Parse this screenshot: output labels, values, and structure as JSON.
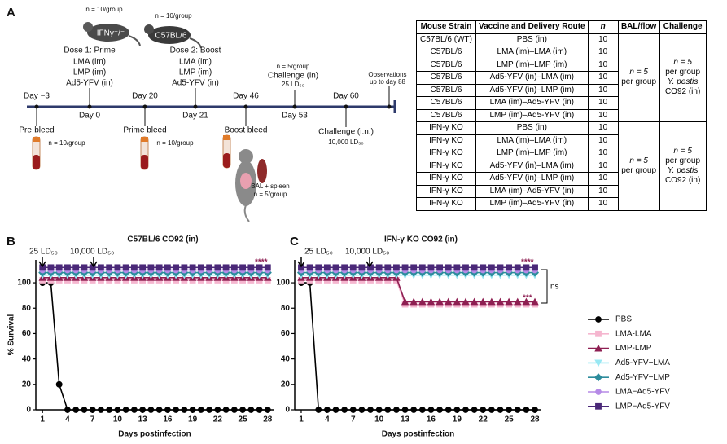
{
  "panel_a": {
    "label": "A",
    "mice": [
      {
        "n": "n = 10/group",
        "strain": "IFNγ⁻/⁻"
      },
      {
        "n": "n = 10/group",
        "strain": "C57BL/6"
      }
    ],
    "days": [
      "Day −3",
      "Day 0",
      "Day 20",
      "Day 21",
      "Day 46",
      "Day 53",
      "Day 60"
    ],
    "prime": [
      "Dose 1: Prime",
      "LMA (im)",
      "LMP (im)",
      "Ad5-YFV (in)"
    ],
    "boost": [
      "Dose 2: Boost",
      "LMA (im)",
      "LMP (im)",
      "Ad5-YFV (in)"
    ],
    "challenge_in": [
      "n = 5/group",
      "Challenge (in)",
      "25 LD₅₀"
    ],
    "observations": [
      "Observations",
      "up to day 88"
    ],
    "pre_bleed": [
      "Pre-bleed",
      "n = 10/group"
    ],
    "prime_bleed": [
      "Prime bleed",
      "n = 10/group"
    ],
    "boost_bleed": [
      "Boost bleed"
    ],
    "challenge_in_late": [
      "Challenge (i.n.)",
      "10,000 LD₅₀"
    ],
    "bal": [
      "BAL + spleen",
      "n = 5/group"
    ]
  },
  "table": {
    "header": [
      "Mouse Strain",
      "Vaccine and Delivery Route",
      "n",
      "BAL/flow",
      "Challenge"
    ],
    "rows": [
      [
        "C57BL/6 (WT)",
        "PBS (in)",
        10
      ],
      [
        "C57BL/6",
        "LMA (im)–LMA (im)",
        10
      ],
      [
        "C57BL/6",
        "LMP (im)–LMP (im)",
        10
      ],
      [
        "C57BL/6",
        "Ad5-YFV (in)–LMA (im)",
        10
      ],
      [
        "C57BL/6",
        "Ad5-YFV (in)–LMP (im)",
        10
      ],
      [
        "C57BL/6",
        "LMA (im)–Ad5-YFV (in)",
        10
      ],
      [
        "C57BL/6",
        "LMP (im)–Ad5-YFV (in)",
        10
      ],
      [
        "IFN-γ KO",
        "PBS (in)",
        10
      ],
      [
        "IFN-γ KO",
        "LMA (im)–LMA (im)",
        10
      ],
      [
        "IFN-γ KO",
        "LMP (im)–LMP (im)",
        10
      ],
      [
        "IFN-γ KO",
        "Ad5-YFV (in)–LMA (im)",
        10
      ],
      [
        "IFN-γ KO",
        "Ad5-YFV (in)–LMP (im)",
        10
      ],
      [
        "IFN-γ KO",
        "LMA (im)–Ad5-YFV (in)",
        10
      ],
      [
        "IFN-γ KO",
        "LMP (im)–Ad5-YFV (in)",
        10
      ]
    ],
    "groups": [
      {
        "bal": [
          "n = 5",
          "per group"
        ],
        "challenge": [
          "n = 5",
          "per group",
          "Y. pestis",
          "CO92 (in)"
        ]
      },
      {
        "bal": [
          "n = 5",
          "per group"
        ],
        "challenge": [
          "n = 5",
          "per group",
          "Y. pestis",
          "CO92 (in)"
        ]
      }
    ]
  },
  "chart_data": [
    {
      "type": "line",
      "label": "B",
      "title": "C57BL/6 CO92 (in)",
      "ylabel": "% Survival",
      "xlabel": "Days postinfection",
      "annotations": [
        "25 LD₅₀",
        "10,000 LD₅₀",
        "****"
      ],
      "x": [
        1,
        2,
        3,
        4,
        5,
        6,
        7,
        8,
        9,
        10,
        11,
        12,
        13,
        14,
        15,
        16,
        17,
        18,
        19,
        20,
        21,
        22,
        23,
        24,
        25,
        26,
        27,
        28
      ],
      "xlim": [
        0.2,
        28.7
      ],
      "xticks": [
        1,
        4,
        7,
        10,
        13,
        16,
        19,
        22,
        25,
        28
      ],
      "ylim": [
        0,
        118
      ],
      "yticks": [
        0,
        20,
        40,
        60,
        80,
        100
      ],
      "series": [
        {
          "name": "PBS",
          "color": "#000000",
          "marker": "circle",
          "values": [
            100,
            100,
            20,
            0,
            0,
            0,
            0,
            0,
            0,
            0,
            0,
            0,
            0,
            0,
            0,
            0,
            0,
            0,
            0,
            0,
            0,
            0,
            0,
            0,
            0,
            0,
            0,
            0
          ]
        },
        {
          "name": "LMA-LMA",
          "color": "#f5b6cf",
          "marker": "square",
          "values": [
            102,
            102,
            102,
            102,
            102,
            102,
            102,
            102,
            102,
            102,
            102,
            102,
            102,
            102,
            102,
            102,
            102,
            102,
            102,
            102,
            102,
            102,
            102,
            102,
            102,
            102,
            102,
            102
          ]
        },
        {
          "name": "LMP-LMP",
          "color": "#8e1f52",
          "marker": "triangle",
          "values": [
            104,
            104,
            104,
            104,
            104,
            104,
            104,
            104,
            104,
            104,
            104,
            104,
            104,
            104,
            104,
            104,
            104,
            104,
            104,
            104,
            104,
            104,
            104,
            104,
            104,
            104,
            104,
            104
          ]
        },
        {
          "name": "Ad5-YFV−LMA",
          "color": "#98e8f3",
          "marker": "triangle-down",
          "values": [
            106,
            106,
            106,
            106,
            106,
            106,
            106,
            106,
            106,
            106,
            106,
            106,
            106,
            106,
            106,
            106,
            106,
            106,
            106,
            106,
            106,
            106,
            106,
            106,
            106,
            106,
            106,
            106
          ]
        },
        {
          "name": "Ad5-YFV−LMP",
          "color": "#2d8c9c",
          "marker": "diamond",
          "values": [
            108,
            108,
            108,
            108,
            108,
            108,
            108,
            108,
            108,
            108,
            108,
            108,
            108,
            108,
            108,
            108,
            108,
            108,
            108,
            108,
            108,
            108,
            108,
            108,
            108,
            108,
            108,
            108
          ]
        },
        {
          "name": "LMA−Ad5-YFV",
          "color": "#b58ae6",
          "marker": "circle",
          "values": [
            110,
            110,
            110,
            110,
            110,
            110,
            110,
            110,
            110,
            110,
            110,
            110,
            110,
            110,
            110,
            110,
            110,
            110,
            110,
            110,
            110,
            110,
            110,
            110,
            110,
            110,
            110,
            110
          ]
        },
        {
          "name": "LMP−Ad5-YFV",
          "color": "#4a2878",
          "marker": "square",
          "values": [
            112,
            112,
            112,
            112,
            112,
            112,
            112,
            112,
            112,
            112,
            112,
            112,
            112,
            112,
            112,
            112,
            112,
            112,
            112,
            112,
            112,
            112,
            112,
            112,
            112,
            112,
            112,
            112
          ]
        }
      ]
    },
    {
      "type": "line",
      "label": "C",
      "title": "IFN-γ KO CO92 (in)",
      "xlabel": "Days postinfection",
      "annotations": [
        "25 LD₅₀",
        "10,000 LD₅₀",
        "****",
        "***",
        "ns"
      ],
      "x": [
        1,
        2,
        3,
        4,
        5,
        6,
        7,
        8,
        9,
        10,
        11,
        12,
        13,
        14,
        15,
        16,
        17,
        18,
        19,
        20,
        21,
        22,
        23,
        24,
        25,
        26,
        27,
        28
      ],
      "xlim": [
        0.25,
        28.75
      ],
      "xticks": [
        1,
        4,
        7,
        10,
        13,
        16,
        19,
        22,
        25,
        28
      ],
      "ylim": [
        0,
        118
      ],
      "yticks": [
        0,
        20,
        40,
        60,
        80,
        100
      ],
      "series": [
        {
          "color": "#000000",
          "marker": "circle",
          "values": [
            100,
            100,
            0,
            0,
            0,
            0,
            0,
            0,
            0,
            0,
            0,
            0,
            0,
            0,
            0,
            0,
            0,
            0,
            0,
            0,
            0,
            0,
            0,
            0,
            0,
            0,
            0,
            0
          ]
        },
        {
          "color": "#f5b6cf",
          "marker": "square",
          "values": [
            102,
            102,
            102,
            102,
            102,
            102,
            102,
            102,
            102,
            102,
            102,
            102,
            83,
            83,
            83,
            83,
            83,
            83,
            83,
            83,
            83,
            83,
            83,
            83,
            83,
            83,
            83,
            83
          ]
        },
        {
          "color": "#8e1f52",
          "marker": "triangle",
          "values": [
            104,
            104,
            104,
            104,
            104,
            104,
            104,
            104,
            104,
            104,
            104,
            104,
            85,
            85,
            85,
            85,
            85,
            85,
            85,
            85,
            85,
            85,
            85,
            85,
            85,
            85,
            85,
            85
          ]
        },
        {
          "color": "#98e8f3",
          "marker": "triangle-down",
          "values": [
            106,
            106,
            106,
            106,
            106,
            106,
            106,
            106,
            106,
            106,
            106,
            106,
            106,
            106,
            106,
            106,
            106,
            106,
            106,
            106,
            106,
            106,
            106,
            106,
            106,
            106,
            106,
            106
          ]
        },
        {
          "color": "#2d8c9c",
          "marker": "diamond",
          "values": [
            108,
            108,
            108,
            108,
            108,
            108,
            108,
            108,
            108,
            108,
            108,
            108,
            108,
            108,
            108,
            108,
            108,
            108,
            108,
            108,
            108,
            108,
            108,
            108,
            108,
            108,
            108,
            108
          ]
        },
        {
          "color": "#b58ae6",
          "marker": "circle",
          "values": [
            110,
            110,
            110,
            110,
            110,
            110,
            110,
            110,
            110,
            110,
            110,
            110,
            110,
            110,
            110,
            110,
            110,
            110,
            110,
            110,
            110,
            110,
            110,
            110,
            110,
            110,
            110,
            110
          ]
        },
        {
          "color": "#4a2878",
          "marker": "square",
          "values": [
            112,
            112,
            112,
            112,
            112,
            112,
            112,
            112,
            112,
            112,
            112,
            112,
            112,
            112,
            112,
            112,
            112,
            112,
            112,
            112,
            112,
            112,
            112,
            112,
            112,
            112,
            112,
            112
          ]
        }
      ]
    }
  ]
}
